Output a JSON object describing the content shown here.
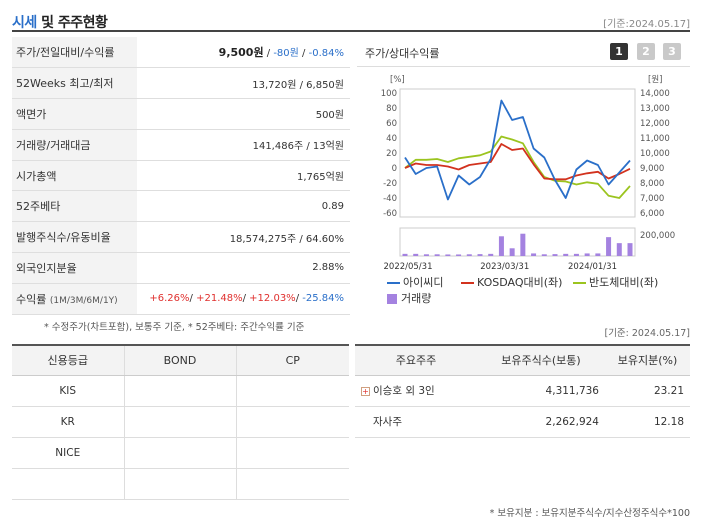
{
  "header": {
    "title_part1": "시세",
    "title_part2": "및 주주현황",
    "date": "[기준:2024.05.17]"
  },
  "summary": {
    "rows": [
      {
        "key": "주가/전일대비/수익률",
        "price": "9,500원",
        "sep1": " / ",
        "change": "-80원",
        "sep2": " / ",
        "rate": "-0.84%"
      },
      {
        "key": "52Weeks 최고/최저",
        "value": "13,720원 / 6,850원"
      },
      {
        "key": "액면가",
        "value": "500원"
      },
      {
        "key": "거래량/거래대금",
        "value": "141,486주 / 13억원"
      },
      {
        "key": "시가총액",
        "value": "1,765억원"
      },
      {
        "key": "52주베타",
        "value": "0.89"
      },
      {
        "key": "발행주식수/유동비율",
        "value": "18,574,275주 / 64.60%"
      },
      {
        "key": "외국인지분율",
        "value": "2.88%"
      },
      {
        "key": "수익률",
        "key_sub": "(1M/3M/6M/1Y)",
        "r1": "+6.26%",
        "r2": "+21.48%",
        "r3": "+12.03%",
        "r4": "-25.84%"
      }
    ],
    "note": "* 수정주가(차트포함), 보통주 기준, * 52주베타: 주간수익률 기준"
  },
  "chart_panel": {
    "title": "주가/상대수익률",
    "pages": [
      "1",
      "2",
      "3"
    ],
    "active_page": "1",
    "legend": [
      {
        "label": "아이씨디",
        "color": "#2a6fc9"
      },
      {
        "label": "KOSDAQ대비(좌)",
        "color": "#d2321e"
      },
      {
        "label": "반도체대비(좌)",
        "color": "#9bc41f"
      },
      {
        "label": "거래량",
        "color": "#a482e0"
      }
    ]
  },
  "chart_data": {
    "type": "line",
    "left_axis_unit": "[%]",
    "right_axis_unit": "[원]",
    "left_ticks": [
      100,
      80,
      60,
      40,
      20,
      0,
      -20,
      -40,
      -60
    ],
    "right_ticks": [
      14000,
      13000,
      12000,
      11000,
      10000,
      9000,
      8000,
      7000,
      6000
    ],
    "volume_tick": "200,000",
    "x_ticks": [
      "2022/05/31",
      "2023/03/31",
      "2024/01/31"
    ],
    "ylim_left": [
      -60,
      100
    ],
    "ylim_right": [
      6000,
      14000
    ],
    "series": [
      {
        "name": "아이씨디",
        "axis": "right",
        "color": "#2a6fc9",
        "values": [
          9700,
          8600,
          9000,
          9100,
          6900,
          8500,
          7900,
          8400,
          9600,
          13500,
          12200,
          12400,
          10300,
          9700,
          8200,
          7000,
          8900,
          9500,
          9200,
          7900,
          8700,
          9500
        ]
      },
      {
        "name": "KOSDAQ대비(좌)",
        "axis": "left",
        "color": "#d2321e",
        "values": [
          0,
          6,
          4,
          4,
          2,
          -2,
          4,
          6,
          8,
          32,
          24,
          26,
          5,
          -14,
          -15,
          -15,
          -10,
          -7,
          -5,
          -14,
          -8,
          -1
        ]
      },
      {
        "name": "반도체대비(좌)",
        "axis": "left",
        "color": "#9bc41f",
        "values": [
          0,
          11,
          11,
          12,
          8,
          13,
          15,
          17,
          22,
          42,
          38,
          33,
          8,
          -12,
          -17,
          -18,
          -22,
          -19,
          -21,
          -37,
          -40,
          -24
        ]
      },
      {
        "name": "거래량",
        "axis": "volume",
        "color": "#a482e0",
        "values": [
          25000,
          25000,
          20000,
          20000,
          18000,
          18000,
          20000,
          22000,
          25000,
          230000,
          90000,
          260000,
          30000,
          20000,
          22000,
          25000,
          25000,
          30000,
          30000,
          220000,
          150000,
          150000
        ]
      }
    ]
  },
  "credit": {
    "date": "[기준: 2024.05.17]",
    "headers": [
      "신용등급",
      "BOND",
      "CP"
    ],
    "rows": [
      [
        "KIS",
        "",
        ""
      ],
      [
        "KR",
        "",
        ""
      ],
      [
        "NICE",
        "",
        ""
      ],
      [
        "",
        "",
        ""
      ]
    ]
  },
  "holders": {
    "headers": [
      "주요주주",
      "보유주식수(보통)",
      "보유지분(%)"
    ],
    "rows": [
      {
        "name": "이승호 외 3인",
        "plus": "+",
        "shares": "4,311,736",
        "pct": "23.21"
      },
      {
        "name": "자사주",
        "plus": "",
        "shares": "2,262,924",
        "pct": "12.18"
      }
    ],
    "note": "* 보유지분 : 보유지분주식수/지수산정주식수*100"
  }
}
